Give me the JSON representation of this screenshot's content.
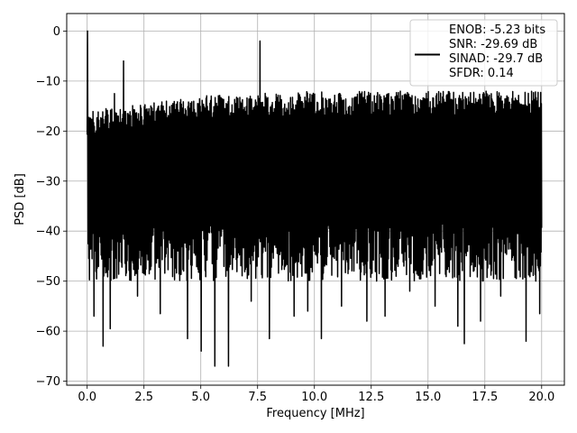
{
  "chart_data": {
    "type": "line",
    "title": "",
    "xlabel": "Frequency [MHz]",
    "ylabel": "PSD [dB]",
    "xlim": [
      -0.9,
      21.0
    ],
    "ylim": [
      -70.8,
      3.5
    ],
    "xticks": [
      0.0,
      2.5,
      5.0,
      7.5,
      10.0,
      12.5,
      15.0,
      17.5,
      20.0
    ],
    "xtick_labels": [
      "0.0",
      "2.5",
      "5.0",
      "7.5",
      "10.0",
      "12.5",
      "15.0",
      "17.5",
      "20.0"
    ],
    "yticks": [
      0,
      -10,
      -20,
      -30,
      -40,
      -50,
      -60,
      -70
    ],
    "ytick_labels": [
      "0",
      "−10",
      "−20",
      "−30",
      "−40",
      "−50",
      "−60",
      "−70"
    ],
    "grid": true,
    "legend_position": "top-right",
    "line_color": "#000000",
    "noise_band": {
      "x_range": [
        0.0,
        20.0
      ],
      "upper_envelope": [
        [
          0.0,
          -16
        ],
        [
          2.5,
          -14.5
        ],
        [
          5.0,
          -13
        ],
        [
          7.5,
          -12.5
        ],
        [
          10.0,
          -12
        ],
        [
          12.5,
          -12
        ],
        [
          15.0,
          -12
        ],
        [
          17.5,
          -12
        ],
        [
          20.0,
          -12
        ]
      ],
      "typical_floor": -48,
      "deep_minima": [
        [
          0.3,
          -57
        ],
        [
          0.7,
          -63
        ],
        [
          1.0,
          -59.5
        ],
        [
          2.2,
          -53
        ],
        [
          3.2,
          -56.5
        ],
        [
          4.4,
          -61.5
        ],
        [
          5.0,
          -64
        ],
        [
          5.6,
          -67
        ],
        [
          6.2,
          -67
        ],
        [
          7.2,
          -54
        ],
        [
          8.0,
          -61.5
        ],
        [
          9.1,
          -57
        ],
        [
          9.7,
          -56
        ],
        [
          10.3,
          -61.5
        ],
        [
          11.2,
          -55
        ],
        [
          12.3,
          -58
        ],
        [
          13.1,
          -57
        ],
        [
          14.2,
          -52
        ],
        [
          15.3,
          -55
        ],
        [
          16.3,
          -59
        ],
        [
          16.6,
          -62.5
        ],
        [
          17.3,
          -58
        ],
        [
          18.2,
          -53
        ],
        [
          19.3,
          -62
        ],
        [
          19.9,
          -56.5
        ]
      ]
    },
    "peaks": [
      {
        "x": 0.02,
        "y": 0.0
      },
      {
        "x": 1.2,
        "y": -12.5
      },
      {
        "x": 1.6,
        "y": -6.0
      },
      {
        "x": 7.6,
        "y": -2.0
      }
    ],
    "series": [
      {
        "name": "ENOB: -5.23 bits\nSNR: -29.69 dB\nSINAD: -29.7 dB\nSFDR: 0.14"
      }
    ],
    "legend_lines": [
      "ENOB: -5.23 bits",
      "SNR: -29.69 dB",
      "SINAD: -29.7 dB",
      "SFDR: 0.14"
    ]
  }
}
